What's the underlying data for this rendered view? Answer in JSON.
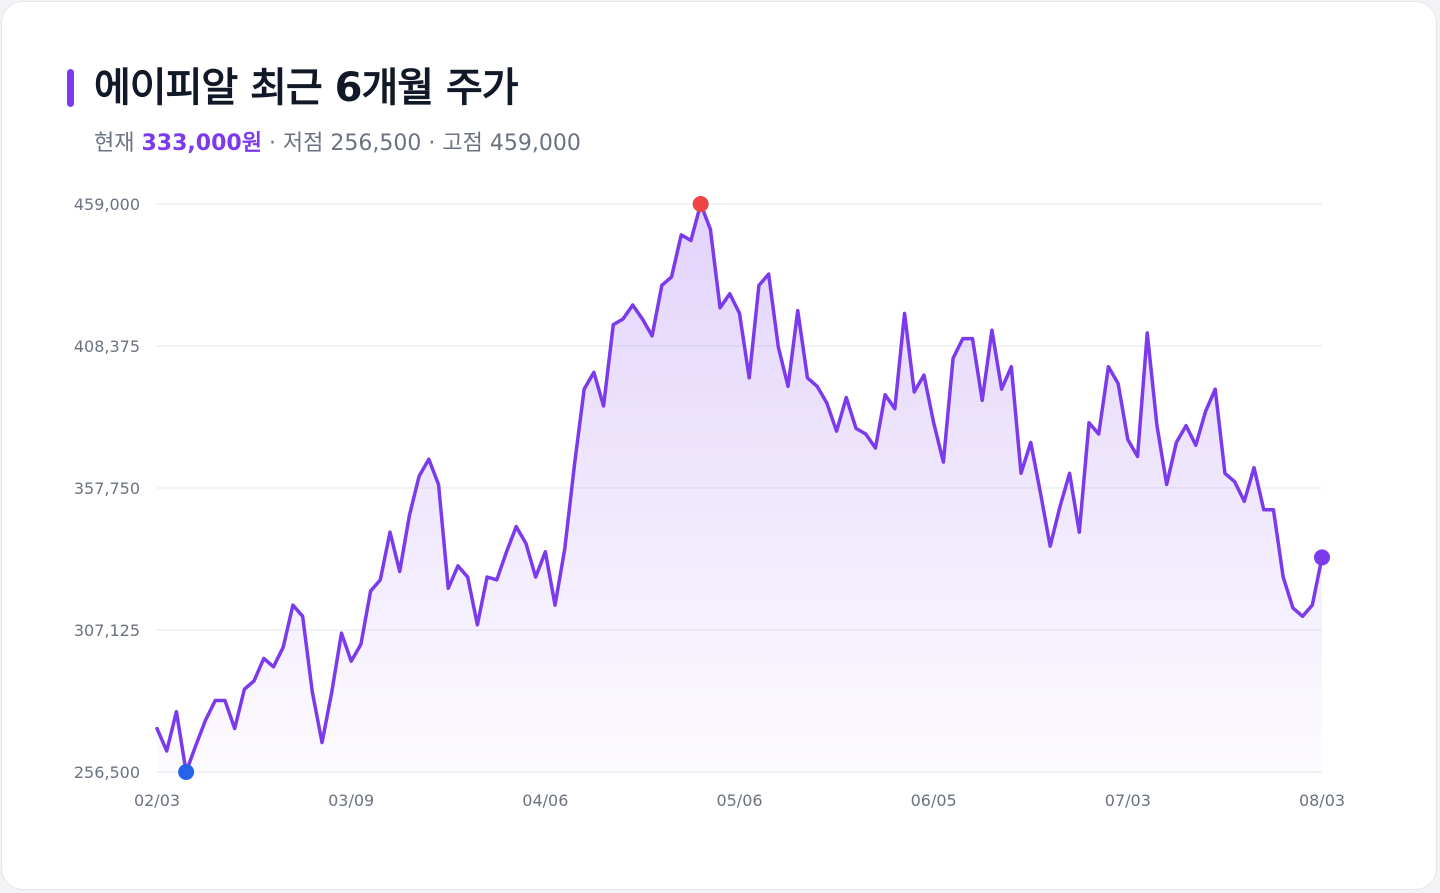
{
  "header": {
    "title": "에이피알 최근 6개월 주가",
    "current_label": "현재",
    "current_value": "333,000원",
    "low_label": "· 저점",
    "low_value": "256,500",
    "high_label": "· 고점",
    "high_value": "459,000"
  },
  "colors": {
    "accent": "#7c3aed",
    "low_marker": "#2563eb",
    "high_marker": "#ef4444",
    "grid": "#e5e7eb",
    "axis_text": "#6b7280"
  },
  "chart_data": {
    "type": "area",
    "title": "에이피알 최근 6개월 주가",
    "xlabel": "",
    "ylabel": "",
    "ylim": [
      256500,
      459000
    ],
    "yticks": [
      "459,000",
      "408,375",
      "357,750",
      "307,125",
      "256,500"
    ],
    "ytick_values": [
      459000,
      408375,
      357750,
      307125,
      256500
    ],
    "xticks": [
      "02/03",
      "03/09",
      "04/06",
      "05/06",
      "06/05",
      "07/03",
      "08/03"
    ],
    "xtick_index": [
      0,
      20,
      40,
      60,
      80,
      100,
      120
    ],
    "grid": true,
    "markers": {
      "low_index": 3,
      "high_index": 56,
      "current_index": 120
    },
    "series": [
      {
        "values": [
          272000,
          264000,
          278000,
          256500,
          266000,
          275000,
          282000,
          282000,
          272000,
          286000,
          289000,
          297000,
          294000,
          301000,
          316000,
          312000,
          285000,
          267000,
          285000,
          306000,
          296000,
          302000,
          321000,
          325000,
          342000,
          328000,
          348000,
          362000,
          368000,
          359000,
          322000,
          330000,
          326000,
          309000,
          326000,
          325000,
          335000,
          344000,
          338000,
          326000,
          335000,
          316000,
          336000,
          366000,
          393000,
          399000,
          387000,
          416000,
          418000,
          423000,
          418000,
          412000,
          430000,
          433000,
          448000,
          446000,
          459000,
          450000,
          422000,
          427000,
          420000,
          397000,
          430000,
          434000,
          408000,
          394000,
          421000,
          397000,
          394000,
          388000,
          378000,
          390000,
          379000,
          377000,
          372000,
          391000,
          386000,
          420000,
          392000,
          398000,
          381000,
          367000,
          404000,
          411000,
          411000,
          389000,
          414000,
          393000,
          401000,
          363000,
          374000,
          356000,
          337000,
          351000,
          363000,
          342000,
          381000,
          377000,
          401000,
          395000,
          375000,
          369000,
          413000,
          380000,
          359000,
          374000,
          380000,
          373000,
          385000,
          393000,
          363000,
          360000,
          353000,
          365000,
          350000,
          350000,
          326000,
          315000,
          312000,
          316000,
          333000
        ]
      }
    ]
  }
}
